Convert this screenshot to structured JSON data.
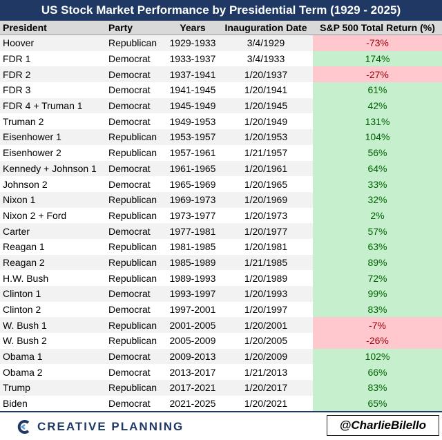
{
  "title": "US Stock Market Performance by Presidential Term (1929 - 2025)",
  "table": {
    "header": [
      "President",
      "Party",
      "Years",
      "Inauguration Date",
      "S&P 500 Total Return (%)"
    ],
    "rows": [
      [
        "Hoover",
        "Republican",
        "1929-1933",
        "3/4/1929",
        "-73%"
      ],
      [
        "FDR 1",
        "Democrat",
        "1933-1937",
        "3/4/1933",
        "174%"
      ],
      [
        "FDR 2",
        "Democrat",
        "1937-1941",
        "1/20/1937",
        "-27%"
      ],
      [
        "FDR 3",
        "Democrat",
        "1941-1945",
        "1/20/1941",
        "61%"
      ],
      [
        "FDR 4 + Truman 1",
        "Democrat",
        "1945-1949",
        "1/20/1945",
        "42%"
      ],
      [
        "Truman 2",
        "Democrat",
        "1949-1953",
        "1/20/1949",
        "131%"
      ],
      [
        "Eisenhower 1",
        "Republican",
        "1953-1957",
        "1/20/1953",
        "104%"
      ],
      [
        "Eisenhower 2",
        "Republican",
        "1957-1961",
        "1/21/1957",
        "56%"
      ],
      [
        "Kennedy + Johnson 1",
        "Democrat",
        "1961-1965",
        "1/20/1961",
        "64%"
      ],
      [
        "Johnson 2",
        "Democrat",
        "1965-1969",
        "1/20/1965",
        "33%"
      ],
      [
        "Nixon 1",
        "Republican",
        "1969-1973",
        "1/20/1969",
        "32%"
      ],
      [
        "Nixon 2 + Ford",
        "Republican",
        "1973-1977",
        "1/20/1973",
        "2%"
      ],
      [
        "Carter",
        "Democrat",
        "1977-1981",
        "1/20/1977",
        "57%"
      ],
      [
        "Reagan 1",
        "Republican",
        "1981-1985",
        "1/20/1981",
        "63%"
      ],
      [
        "Reagan 2",
        "Republican",
        "1985-1989",
        "1/21/1985",
        "89%"
      ],
      [
        "H.W. Bush",
        "Republican",
        "1989-1993",
        "1/20/1989",
        "72%"
      ],
      [
        "Clinton 1",
        "Democrat",
        "1993-1997",
        "1/20/1993",
        "99%"
      ],
      [
        "Clinton 2",
        "Democrat",
        "1997-2001",
        "1/20/1997",
        "83%"
      ],
      [
        "W. Bush 1",
        "Republican",
        "2001-2005",
        "1/20/2001",
        "-7%"
      ],
      [
        "W. Bush 2",
        "Republican",
        "2005-2009",
        "1/20/2005",
        "-26%"
      ],
      [
        "Obama 1",
        "Democrat",
        "2009-2013",
        "1/20/2009",
        "102%"
      ],
      [
        "Obama 2",
        "Democrat",
        "2013-2017",
        "1/21/2013",
        "66%"
      ],
      [
        "Trump",
        "Republican",
        "2017-2021",
        "1/20/2017",
        "83%"
      ],
      [
        "Biden",
        "Democrat",
        "2021-2025",
        "1/20/2021",
        "65%"
      ]
    ]
  },
  "footer": {
    "brand": "CREATIVE PLANNING",
    "handle": "@CharlieBilello"
  }
}
